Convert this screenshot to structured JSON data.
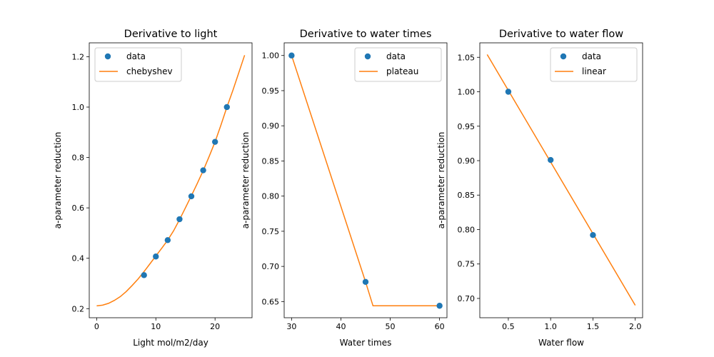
{
  "colors": {
    "data": "#1f77b4",
    "fit": "#ff7f0e"
  },
  "chart_data": [
    {
      "type": "scatter",
      "title": "Derivative to light",
      "xlabel": "Light mol/m2/day",
      "ylabel": "a-parameter reduction",
      "xlim": [
        -1.25,
        26.25
      ],
      "ylim": [
        0.164,
        1.255
      ],
      "xticks": [
        "0",
        "10",
        "20"
      ],
      "yticks": [
        "0.2",
        "0.4",
        "0.6",
        "0.8",
        "1.0",
        "1.2"
      ],
      "legend": {
        "position": "top-left",
        "entries": [
          "data",
          "chebyshev"
        ]
      },
      "series": [
        {
          "name": "data",
          "kind": "points",
          "x": [
            8,
            10,
            12,
            14,
            16,
            18,
            20,
            22
          ],
          "y": [
            0.333,
            0.407,
            0.472,
            0.555,
            0.646,
            0.749,
            0.862,
            1.0
          ]
        },
        {
          "name": "chebyshev",
          "kind": "line",
          "x": [
            0,
            1,
            2,
            3,
            4,
            5,
            6,
            7,
            8,
            9,
            10,
            11,
            12,
            13,
            14,
            15,
            16,
            17,
            18,
            19,
            20,
            21,
            22,
            23,
            24,
            25
          ],
          "y": [
            0.211,
            0.214,
            0.221,
            0.233,
            0.248,
            0.268,
            0.292,
            0.318,
            0.347,
            0.378,
            0.409,
            0.44,
            0.472,
            0.509,
            0.553,
            0.6,
            0.648,
            0.697,
            0.748,
            0.804,
            0.862,
            0.929,
            1.0,
            1.066,
            1.135,
            1.206
          ]
        }
      ]
    },
    {
      "type": "scatter",
      "title": "Derivative to water times",
      "xlabel": "Water times",
      "ylabel": "a-parameter reduction",
      "xlim": [
        28.5,
        61.5
      ],
      "ylim": [
        0.627,
        1.018
      ],
      "xticks": [
        "30",
        "40",
        "50",
        "60"
      ],
      "yticks": [
        "0.65",
        "0.70",
        "0.75",
        "0.80",
        "0.85",
        "0.90",
        "0.95",
        "1.00"
      ],
      "legend": {
        "position": "top-right",
        "entries": [
          "data",
          "plateau"
        ]
      },
      "series": [
        {
          "name": "data",
          "kind": "points",
          "x": [
            30,
            45,
            60
          ],
          "y": [
            1.0,
            0.678,
            0.644
          ]
        },
        {
          "name": "plateau",
          "kind": "line",
          "x": [
            30,
            45,
            46.5,
            60
          ],
          "y": [
            1.0,
            0.678,
            0.644,
            0.644
          ]
        }
      ]
    },
    {
      "type": "scatter",
      "title": "Derivative to water flow",
      "xlabel": "Water flow",
      "ylabel": "a-parameter reduction",
      "xlim": [
        0.163,
        2.087
      ],
      "ylim": [
        0.672,
        1.071
      ],
      "xticks": [
        "0.5",
        "1.0",
        "1.5",
        "2.0"
      ],
      "yticks": [
        "0.70",
        "0.75",
        "0.80",
        "0.85",
        "0.90",
        "0.95",
        "1.00",
        "1.05"
      ],
      "legend": {
        "position": "top-right",
        "entries": [
          "data",
          "linear"
        ]
      },
      "series": [
        {
          "name": "data",
          "kind": "points",
          "x": [
            0.5,
            1.0,
            1.5
          ],
          "y": [
            1.0,
            0.901,
            0.792
          ]
        },
        {
          "name": "linear",
          "kind": "line",
          "x": [
            0.25,
            2.0
          ],
          "y": [
            1.054,
            0.69
          ]
        }
      ]
    }
  ]
}
